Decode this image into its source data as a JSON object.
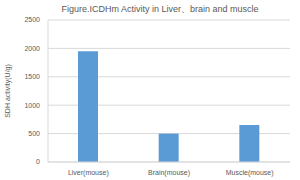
{
  "chart_data": {
    "type": "bar",
    "title": "Figure.ICDHm Activity in Liver、brain and muscle",
    "y_label": "SDH activity(U/g)",
    "categories": [
      "Liver(mouse)",
      "Brain(mouse)",
      "Muscle(mouse)"
    ],
    "values": [
      1950,
      500,
      650
    ],
    "color": "#5b9bd5",
    "ylim": [
      0,
      2500
    ],
    "yticks": [
      0,
      500,
      1000,
      1500,
      2000,
      2500
    ],
    "grid": true
  }
}
